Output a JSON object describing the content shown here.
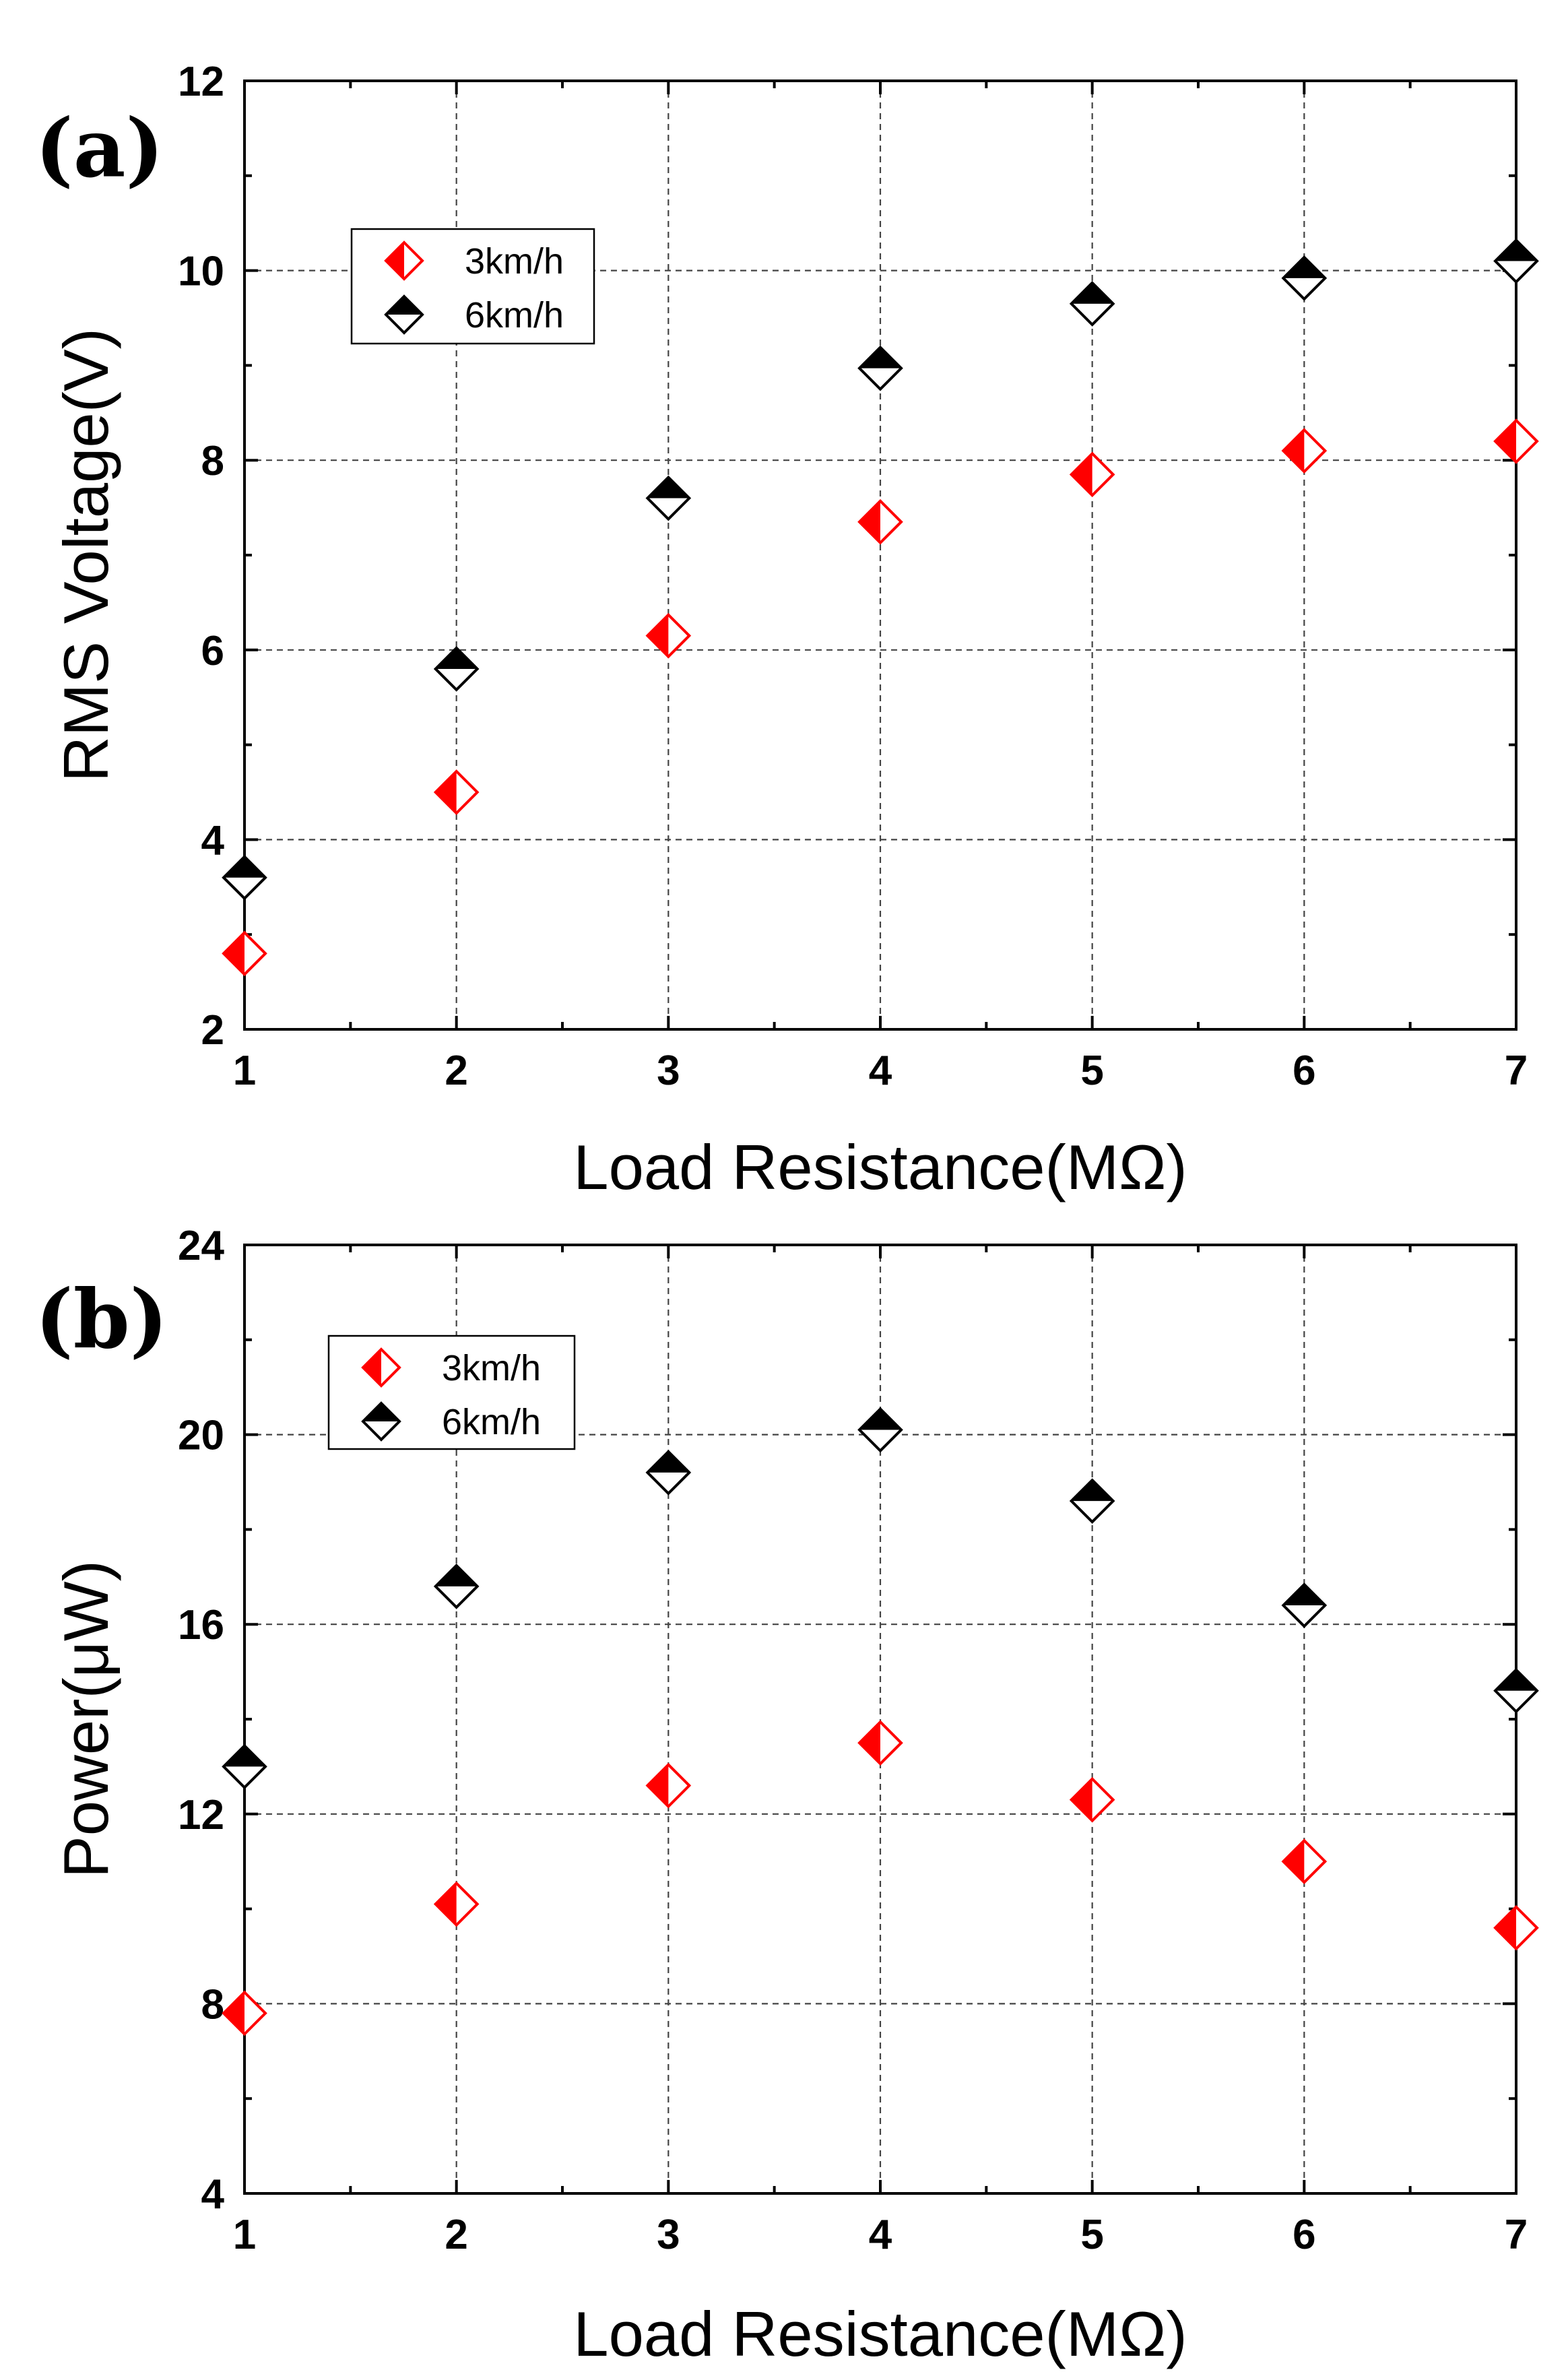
{
  "colors": {
    "series_3kmh": "#ff0000",
    "series_6kmh": "#000000"
  },
  "chart_data": [
    {
      "type": "scatter",
      "panel_label": "(a)",
      "xlabel": "Load Resistance(MΩ)",
      "ylabel": "RMS Voltage(V)",
      "xlim": [
        1,
        7
      ],
      "ylim": [
        2,
        12
      ],
      "x_ticks": [
        "1",
        "2",
        "3",
        "4",
        "5",
        "6",
        "7"
      ],
      "y_ticks": [
        "2",
        "4",
        "6",
        "8",
        "10",
        "12"
      ],
      "grid": true,
      "legend_position": "top-left",
      "x": [
        1,
        2,
        3,
        4,
        5,
        6,
        7
      ],
      "series": [
        {
          "name": "3km/h",
          "marker": "diamond-half-left",
          "values": [
            2.8,
            4.5,
            6.15,
            7.35,
            7.85,
            8.1,
            8.2
          ]
        },
        {
          "name": "6km/h",
          "marker": "diamond-half-top",
          "values": [
            3.6,
            5.8,
            7.6,
            8.97,
            9.65,
            9.92,
            10.1
          ]
        }
      ]
    },
    {
      "type": "scatter",
      "panel_label": "(b)",
      "xlabel": "Load Resistance(MΩ)",
      "ylabel": "Power(μW)",
      "xlim": [
        1,
        7
      ],
      "ylim": [
        4,
        24
      ],
      "x_ticks": [
        "1",
        "2",
        "3",
        "4",
        "5",
        "6",
        "7"
      ],
      "y_ticks": [
        "4",
        "8",
        "12",
        "16",
        "20",
        "24"
      ],
      "grid": true,
      "legend_position": "top-left",
      "x": [
        1,
        2,
        3,
        4,
        5,
        6,
        7
      ],
      "series": [
        {
          "name": "3km/h",
          "marker": "diamond-half-left",
          "values": [
            7.8,
            10.1,
            12.6,
            13.5,
            12.3,
            11.0,
            9.6
          ]
        },
        {
          "name": "6km/h",
          "marker": "diamond-half-top",
          "values": [
            13.0,
            16.8,
            19.2,
            20.1,
            18.6,
            16.4,
            14.6
          ]
        }
      ]
    }
  ]
}
